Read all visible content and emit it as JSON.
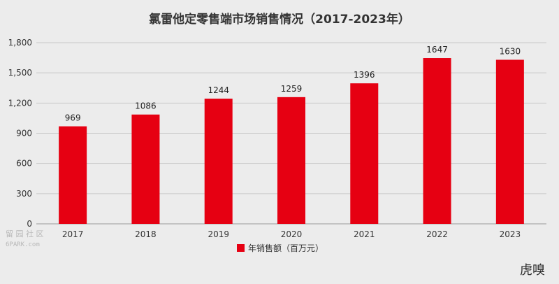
{
  "chart_data": {
    "type": "bar",
    "title": "氯雷他定零售端市场销售情况（2017-2023年）",
    "categories": [
      "2017",
      "2018",
      "2019",
      "2020",
      "2021",
      "2022",
      "2023"
    ],
    "series": [
      {
        "name": "年销售额（百万元）",
        "values": [
          969,
          1086,
          1244,
          1259,
          1396,
          1647,
          1630
        ],
        "color": "#e60012"
      }
    ],
    "ylim": [
      0,
      1800
    ],
    "yticks": [
      "0",
      "300",
      "600",
      "900",
      "1,200",
      "1,500",
      "1,800"
    ],
    "grid": true,
    "legend": "bottom-center"
  },
  "watermarks": {
    "left_top": "留 园 社 区",
    "left_bottom": "6PARK.com",
    "right": "虎嗅"
  }
}
